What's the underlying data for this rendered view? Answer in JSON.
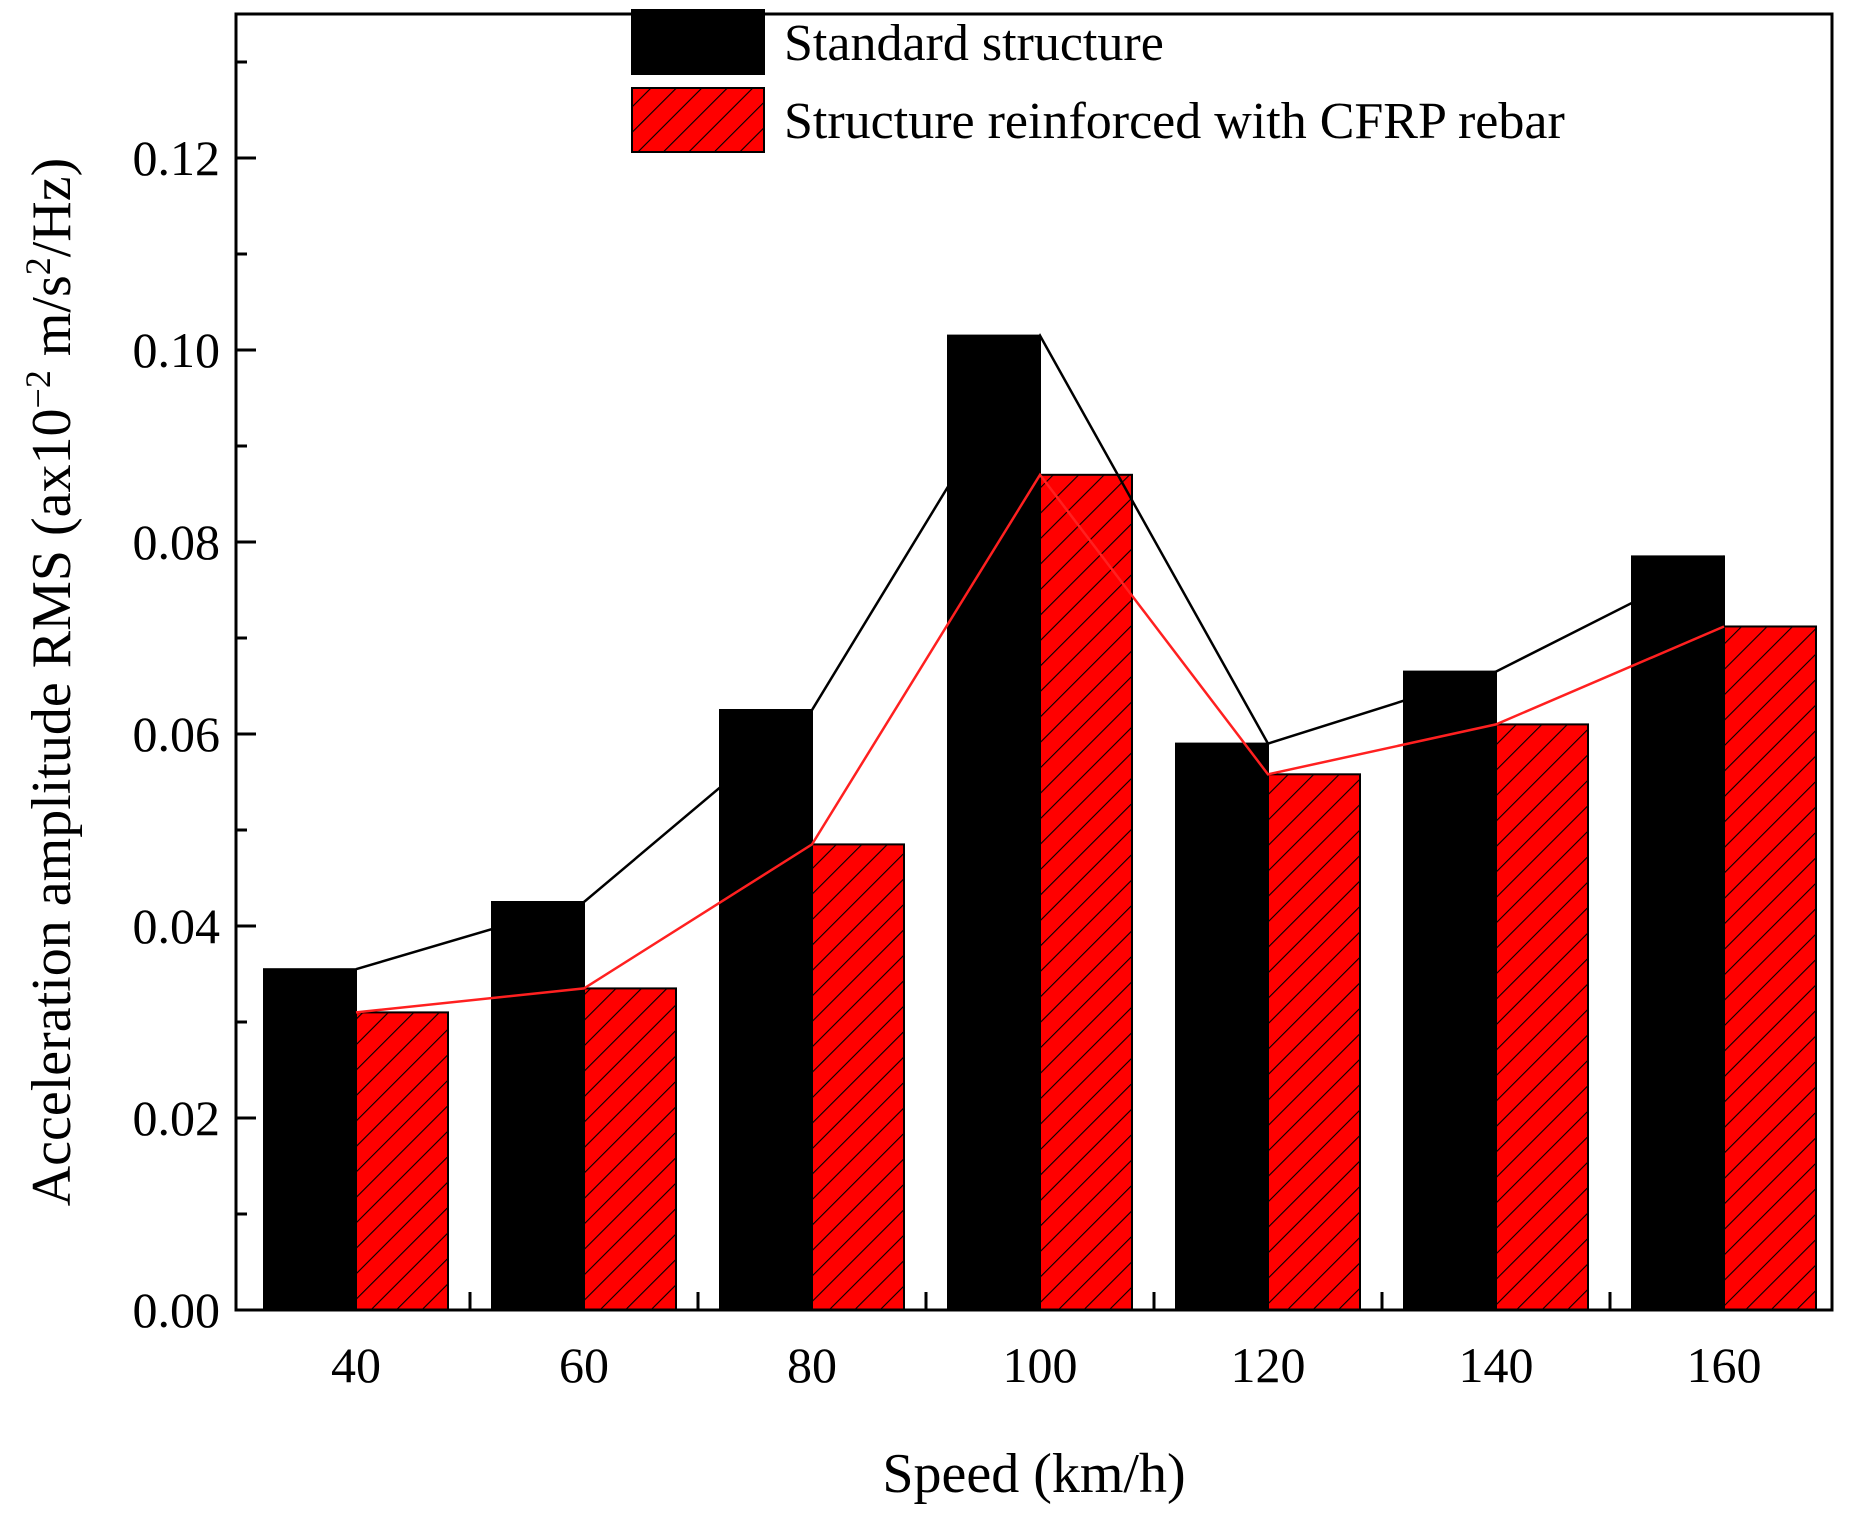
{
  "chart_data": {
    "type": "bar",
    "title": "",
    "xlabel": "Speed (km/h)",
    "ylabel": {
      "prefix": "Acceleration amplitude RMS (ax10",
      "exp1": "−2",
      "mid": " m/s",
      "exp2": "2",
      "suffix": "/Hz)"
    },
    "categories": [
      "40",
      "60",
      "80",
      "100",
      "120",
      "140",
      "160"
    ],
    "ylim": [
      0,
      0.135
    ],
    "yticks": [
      "0.00",
      "0.02",
      "0.04",
      "0.06",
      "0.08",
      "0.10",
      "0.12"
    ],
    "ytick_values": [
      0,
      0.02,
      0.04,
      0.06,
      0.08,
      0.1,
      0.12
    ],
    "legend_position": "top-center",
    "series": [
      {
        "name": "Standard structure",
        "values": [
          0.0355,
          0.0425,
          0.0625,
          0.1015,
          0.059,
          0.0665,
          0.0785
        ],
        "color": "#000000",
        "pattern": "solid"
      },
      {
        "name": "Structure reinforced with CFRP rebar",
        "values": [
          0.031,
          0.0335,
          0.0485,
          0.087,
          0.0558,
          0.061,
          0.0712
        ],
        "color": "#ff0000",
        "pattern": "hatch"
      }
    ]
  }
}
